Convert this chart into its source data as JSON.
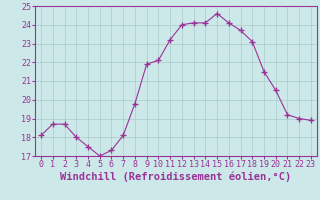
{
  "x": [
    0,
    1,
    2,
    3,
    4,
    5,
    6,
    7,
    8,
    9,
    10,
    11,
    12,
    13,
    14,
    15,
    16,
    17,
    18,
    19,
    20,
    21,
    22,
    23
  ],
  "y": [
    18.1,
    18.7,
    18.7,
    18.0,
    17.5,
    17.0,
    17.3,
    18.1,
    19.8,
    21.9,
    22.1,
    23.2,
    24.0,
    24.1,
    24.1,
    24.6,
    24.1,
    23.7,
    23.1,
    21.5,
    20.5,
    19.2,
    19.0,
    18.9
  ],
  "line_color": "#993399",
  "marker": "+",
  "marker_size": 4,
  "marker_lw": 1.0,
  "xlabel": "Windchill (Refroidissement éolien,°C)",
  "xlim": [
    -0.5,
    23.5
  ],
  "ylim": [
    17,
    25
  ],
  "yticks": [
    17,
    18,
    19,
    20,
    21,
    22,
    23,
    24,
    25
  ],
  "xticks": [
    0,
    1,
    2,
    3,
    4,
    5,
    6,
    7,
    8,
    9,
    10,
    11,
    12,
    13,
    14,
    15,
    16,
    17,
    18,
    19,
    20,
    21,
    22,
    23
  ],
  "grid_color": "#aacccc",
  "bg_color": "#cce8e8",
  "tick_color": "#993399",
  "label_color": "#993399",
  "tick_fontsize": 6,
  "xlabel_fontsize": 7.5
}
